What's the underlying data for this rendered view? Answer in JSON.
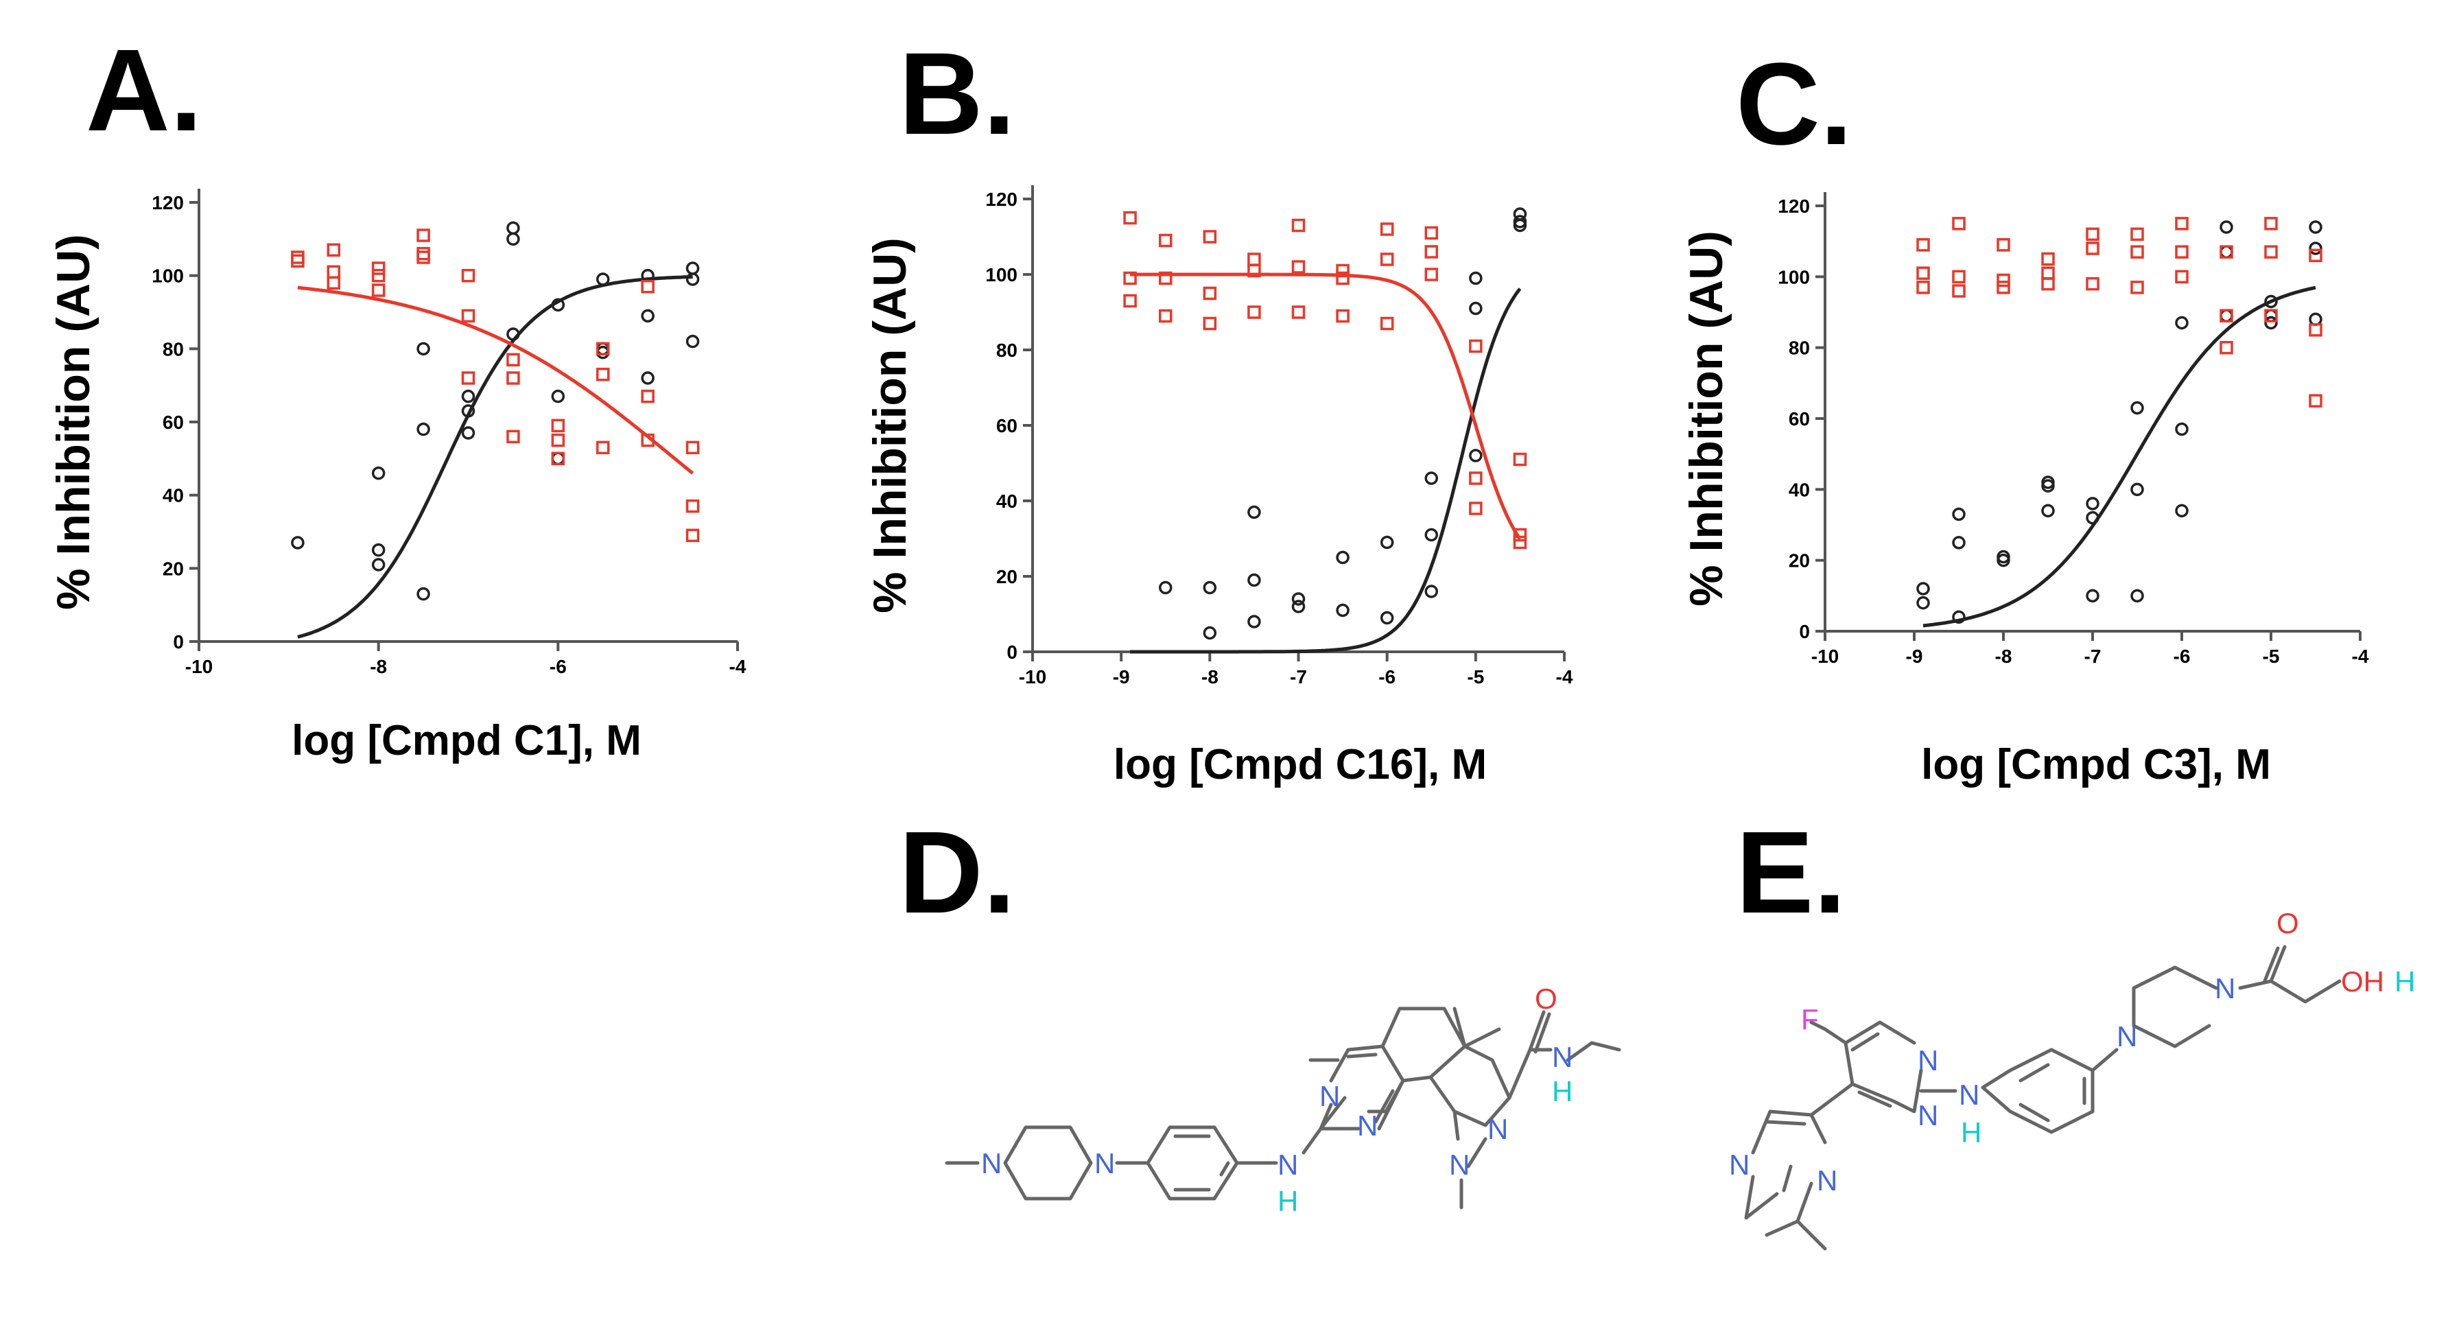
{
  "colors": {
    "black_series": "#222222",
    "red_series": "#e8392a",
    "nitrogen": "#4466dd",
    "hydrogen": "#11cccc",
    "oxygen": "#ee3333",
    "fluorine": "#dd44dd",
    "bond": "#666666"
  },
  "chart_data": [
    {
      "type": "scatter",
      "panel": "A.",
      "title": "",
      "xlabel": "log [Cmpd C1], M",
      "ylabel": "% Inhibition (AU)",
      "xlim": [
        -10,
        -4
      ],
      "ylim": [
        0,
        120
      ],
      "xticks": [
        -10,
        -8,
        -6,
        -4
      ],
      "yticks": [
        0,
        20,
        40,
        60,
        80,
        100,
        120
      ],
      "xtick_labels": [
        "-10",
        "-8",
        "-6",
        "-4"
      ],
      "ytick_labels": [
        "0",
        "20",
        "40",
        "60",
        "80",
        "100",
        "120"
      ],
      "series": [
        {
          "name": "black",
          "marker": "circle",
          "color": "#222222",
          "points": [
            [
              -8.9,
              27
            ],
            [
              -8,
              25
            ],
            [
              -8,
              21
            ],
            [
              -8,
              46
            ],
            [
              -7.5,
              13
            ],
            [
              -7.5,
              58
            ],
            [
              -7.5,
              80
            ],
            [
              -7,
              57
            ],
            [
              -7,
              63
            ],
            [
              -7,
              67
            ],
            [
              -6.5,
              113
            ],
            [
              -6.5,
              110
            ],
            [
              -6.5,
              84
            ],
            [
              -6,
              92
            ],
            [
              -6,
              67
            ],
            [
              -6,
              50
            ],
            [
              -5.5,
              99
            ],
            [
              -5.5,
              80
            ],
            [
              -5.5,
              79
            ],
            [
              -5,
              100
            ],
            [
              -5,
              89
            ],
            [
              -5,
              72
            ],
            [
              -4.5,
              102
            ],
            [
              -4.5,
              99
            ],
            [
              -4.5,
              82
            ]
          ],
          "fit": {
            "bottom": -2,
            "top": 100,
            "logEC50": -7.25,
            "hill": 0.9
          }
        },
        {
          "name": "red",
          "marker": "square",
          "color": "#e8392a",
          "points": [
            [
              -8.9,
              105
            ],
            [
              -8.9,
              104
            ],
            [
              -8.5,
              107
            ],
            [
              -8.5,
              101
            ],
            [
              -8.5,
              98
            ],
            [
              -8,
              102
            ],
            [
              -8,
              100
            ],
            [
              -8,
              96
            ],
            [
              -7.5,
              111
            ],
            [
              -7.5,
              106
            ],
            [
              -7.5,
              105
            ],
            [
              -7,
              100
            ],
            [
              -7,
              89
            ],
            [
              -7,
              72
            ],
            [
              -6.5,
              77
            ],
            [
              -6.5,
              72
            ],
            [
              -6.5,
              56
            ],
            [
              -6,
              59
            ],
            [
              -6,
              55
            ],
            [
              -6,
              50
            ],
            [
              -5.5,
              80
            ],
            [
              -5.5,
              73
            ],
            [
              -5.5,
              53
            ],
            [
              -5,
              97
            ],
            [
              -5,
              67
            ],
            [
              -5,
              55
            ],
            [
              -4.5,
              53
            ],
            [
              -4.5,
              37
            ],
            [
              -4.5,
              29
            ]
          ],
          "fit": {
            "bottom": 0,
            "top": 100,
            "logEC50": -4.7,
            "hill": -0.35
          }
        }
      ]
    },
    {
      "type": "scatter",
      "panel": "B.",
      "title": "",
      "xlabel": "log [Cmpd C16], M",
      "ylabel": "% Inhibition  (AU)",
      "xlim": [
        -10,
        -4
      ],
      "ylim": [
        0,
        120
      ],
      "xticks": [
        -10,
        -9,
        -8,
        -7,
        -6,
        -5,
        -4
      ],
      "yticks": [
        0,
        20,
        40,
        60,
        80,
        100,
        120
      ],
      "xtick_labels": [
        "-10",
        "-9",
        "-8",
        "-7",
        "-6",
        "-5",
        "-4"
      ],
      "ytick_labels": [
        "0",
        "20",
        "40",
        "60",
        "80",
        "100",
        "120"
      ],
      "series": [
        {
          "name": "black",
          "marker": "circle",
          "color": "#222222",
          "points": [
            [
              -8.5,
              17
            ],
            [
              -8,
              17
            ],
            [
              -8,
              5
            ],
            [
              -7.5,
              37
            ],
            [
              -7.5,
              19
            ],
            [
              -7.5,
              8
            ],
            [
              -7,
              14
            ],
            [
              -7,
              12
            ],
            [
              -6.5,
              25
            ],
            [
              -6.5,
              11
            ],
            [
              -6,
              29
            ],
            [
              -6,
              9
            ],
            [
              -5.5,
              46
            ],
            [
              -5.5,
              31
            ],
            [
              -5.5,
              16
            ],
            [
              -5,
              99
            ],
            [
              -5,
              91
            ],
            [
              -5,
              52
            ],
            [
              -4.5,
              116
            ],
            [
              -4.5,
              114
            ],
            [
              -4.5,
              113
            ]
          ],
          "fit": {
            "bottom": 0,
            "top": 105,
            "logEC50": -5.15,
            "hill": 1.6
          }
        },
        {
          "name": "red",
          "marker": "square",
          "color": "#e8392a",
          "points": [
            [
              -8.9,
              115
            ],
            [
              -8.9,
              99
            ],
            [
              -8.9,
              93
            ],
            [
              -8.5,
              109
            ],
            [
              -8.5,
              99
            ],
            [
              -8.5,
              89
            ],
            [
              -8,
              110
            ],
            [
              -8,
              95
            ],
            [
              -8,
              87
            ],
            [
              -7.5,
              104
            ],
            [
              -7.5,
              101
            ],
            [
              -7.5,
              90
            ],
            [
              -7,
              113
            ],
            [
              -7,
              102
            ],
            [
              -7,
              90
            ],
            [
              -6.5,
              101
            ],
            [
              -6.5,
              99
            ],
            [
              -6.5,
              89
            ],
            [
              -6,
              112
            ],
            [
              -6,
              104
            ],
            [
              -6,
              87
            ],
            [
              -5.5,
              111
            ],
            [
              -5.5,
              106
            ],
            [
              -5.5,
              100
            ],
            [
              -5,
              81
            ],
            [
              -5,
              46
            ],
            [
              -5,
              38
            ],
            [
              -4.5,
              51
            ],
            [
              -4.5,
              31
            ],
            [
              -4.5,
              29
            ]
          ],
          "fit": {
            "bottom": 20,
            "top": 100,
            "logEC50": -5.0,
            "hill": -1.7
          }
        }
      ]
    },
    {
      "type": "scatter",
      "panel": "C.",
      "title": "",
      "xlabel": "log [Cmpd C3], M",
      "ylabel": "% Inhibition (AU)",
      "xlim": [
        -10,
        -4
      ],
      "ylim": [
        0,
        120
      ],
      "xticks": [
        -10,
        -9,
        -8,
        -7,
        -6,
        -5,
        -4
      ],
      "yticks": [
        0,
        20,
        40,
        60,
        80,
        100,
        120
      ],
      "xtick_labels": [
        "-10",
        "-9",
        "-8",
        "-7",
        "-6",
        "-5",
        "-4"
      ],
      "ytick_labels": [
        "0",
        "20",
        "40",
        "60",
        "80",
        "100",
        "120"
      ],
      "series": [
        {
          "name": "black",
          "marker": "circle",
          "color": "#222222",
          "points": [
            [
              -8.9,
              12
            ],
            [
              -8.9,
              8
            ],
            [
              -8.5,
              33
            ],
            [
              -8.5,
              25
            ],
            [
              -8.5,
              4
            ],
            [
              -8,
              21
            ],
            [
              -8,
              20
            ],
            [
              -7.5,
              42
            ],
            [
              -7.5,
              41
            ],
            [
              -7.5,
              34
            ],
            [
              -7,
              36
            ],
            [
              -7,
              32
            ],
            [
              -7,
              10
            ],
            [
              -6.5,
              63
            ],
            [
              -6.5,
              40
            ],
            [
              -6.5,
              10
            ],
            [
              -6,
              87
            ],
            [
              -6,
              57
            ],
            [
              -6,
              34
            ],
            [
              -5.5,
              114
            ],
            [
              -5.5,
              107
            ],
            [
              -5.5,
              89
            ],
            [
              -5,
              93
            ],
            [
              -5,
              89
            ],
            [
              -5,
              87
            ],
            [
              -4.5,
              114
            ],
            [
              -4.5,
              108
            ],
            [
              -4.5,
              88
            ]
          ],
          "fit": {
            "bottom": 0,
            "top": 100,
            "logEC50": -6.5,
            "hill": 0.75
          }
        },
        {
          "name": "red",
          "marker": "square",
          "color": "#e8392a",
          "points": [
            [
              -8.9,
              109
            ],
            [
              -8.9,
              101
            ],
            [
              -8.9,
              97
            ],
            [
              -8.5,
              115
            ],
            [
              -8.5,
              100
            ],
            [
              -8.5,
              96
            ],
            [
              -8,
              109
            ],
            [
              -8,
              99
            ],
            [
              -8,
              97
            ],
            [
              -7.5,
              105
            ],
            [
              -7.5,
              101
            ],
            [
              -7.5,
              98
            ],
            [
              -7,
              112
            ],
            [
              -7,
              108
            ],
            [
              -7,
              98
            ],
            [
              -6.5,
              112
            ],
            [
              -6.5,
              107
            ],
            [
              -6.5,
              97
            ],
            [
              -6,
              115
            ],
            [
              -6,
              107
            ],
            [
              -6,
              100
            ],
            [
              -5.5,
              107
            ],
            [
              -5.5,
              89
            ],
            [
              -5.5,
              80
            ],
            [
              -5,
              115
            ],
            [
              -5,
              107
            ],
            [
              -5,
              89
            ],
            [
              -4.5,
              106
            ],
            [
              -4.5,
              85
            ],
            [
              -4.5,
              65
            ]
          ],
          "fit": null
        }
      ]
    }
  ],
  "structures": {
    "D": {
      "label": "D.",
      "atoms": {
        "n_pip1": "N",
        "n_pip2": "N",
        "n_pyr1": "N",
        "n_pyr2": "N",
        "nh_n": "N",
        "nh_h": "H",
        "n_pz1": "N",
        "n_pz2": "N",
        "amide_o": "O",
        "amide_n": "N",
        "amide_h": "H"
      }
    },
    "E": {
      "label": "E.",
      "atoms": {
        "f": "F",
        "n_pm1": "N",
        "n_pm2": "N",
        "nh_n": "N",
        "nh_h": "H",
        "n_im1": "N",
        "n_im2": "N",
        "n_pip1": "N",
        "n_pip2": "N",
        "o_carbonyl": "O",
        "oh": "OH",
        "oh_h": "H"
      }
    }
  }
}
